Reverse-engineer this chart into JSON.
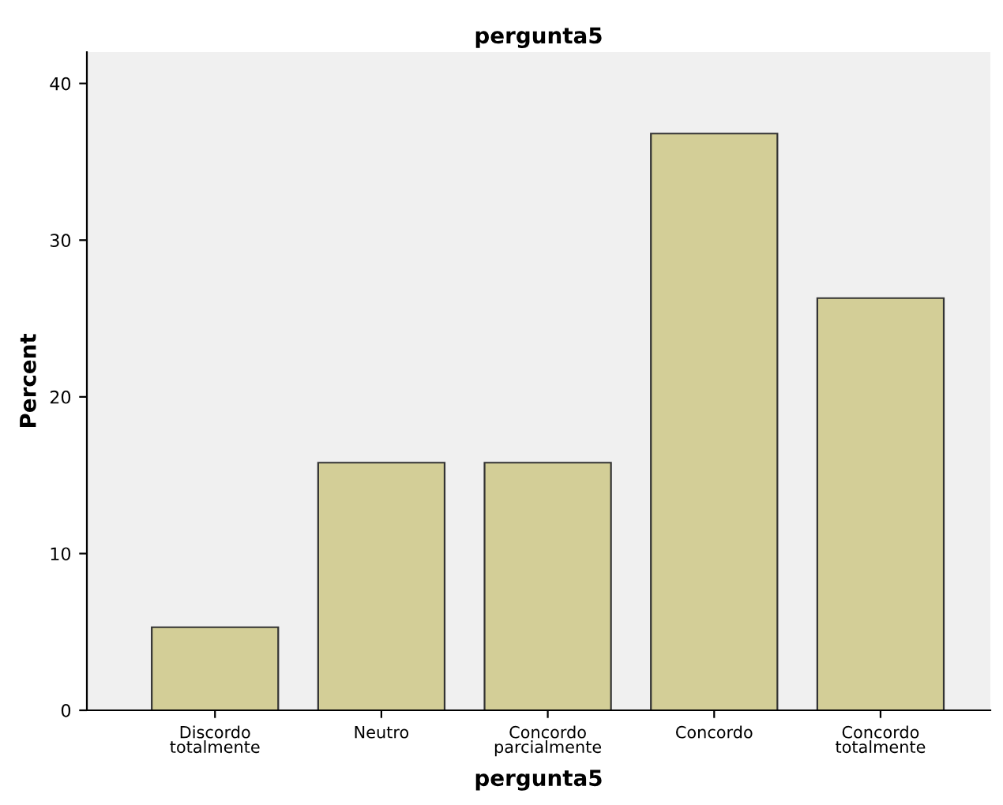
{
  "chart_data": {
    "type": "bar",
    "title": "pergunta5",
    "xlabel": "pergunta5",
    "ylabel": "Percent",
    "categories": [
      "Discordo\ntotalmente",
      "Neutro",
      "Concordo\nparcialmente",
      "Concordo",
      "Concordo\ntotalmente"
    ],
    "values": [
      5.3,
      15.8,
      15.8,
      36.8,
      26.3
    ],
    "color": "#d3ce97",
    "ylim": [
      0,
      42
    ],
    "yticks": [
      0,
      10,
      20,
      30,
      40
    ],
    "grid": false,
    "legend": false
  }
}
